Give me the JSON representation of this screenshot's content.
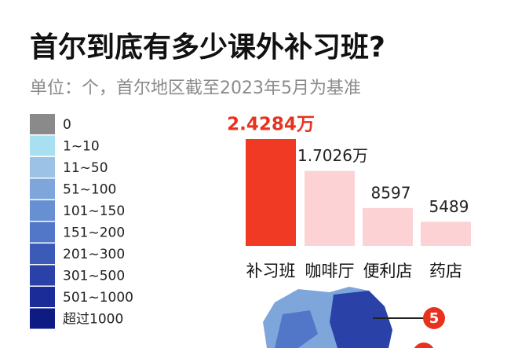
{
  "title": "首尔到底有多少课外补习班?",
  "subtitle": "单位：个，首尔地区截至2023年5月为基准",
  "legend": {
    "items": [
      {
        "label": "0",
        "color": "#8a8a8a"
      },
      {
        "label": "1~10",
        "color": "#a8e0f2"
      },
      {
        "label": "11~50",
        "color": "#9cc3e6"
      },
      {
        "label": "51~100",
        "color": "#7ea6da"
      },
      {
        "label": "101~150",
        "color": "#6690d2"
      },
      {
        "label": "151~200",
        "color": "#5277c8"
      },
      {
        "label": "201~300",
        "color": "#3c5bb8"
      },
      {
        "label": "301~500",
        "color": "#2a42a8"
      },
      {
        "label": "501~1000",
        "color": "#1b2c98"
      },
      {
        "label": "超过1000",
        "color": "#0e1b82"
      }
    ]
  },
  "map_marker": "5",
  "chart_data": {
    "type": "bar",
    "categories": [
      "补习班",
      "咖啡厅",
      "便利店",
      "药店"
    ],
    "values": [
      24284,
      17026,
      8597,
      5489
    ],
    "value_labels": [
      "2.4284万",
      "1.7026万",
      "8597",
      "5489"
    ],
    "colors": [
      "#f03a24",
      "#fcd2d4",
      "#fcd2d4",
      "#fcd2d4"
    ],
    "label_colors": [
      "#e8321e",
      "#222222",
      "#222222",
      "#222222"
    ]
  }
}
